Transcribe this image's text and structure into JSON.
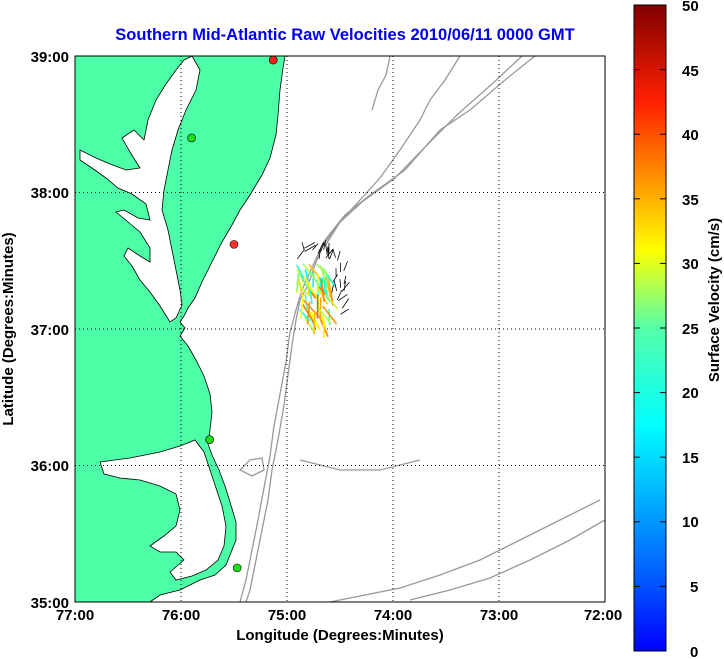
{
  "title": "Southern Mid-Atlantic Raw Velocities 2010/06/11 0000 GMT",
  "title_color": "#0000ee",
  "xlabel": "Longitude (Degrees:Minutes)",
  "ylabel": "Latitude (Degrees:Minutes)",
  "x_ticks": [
    "77:00",
    "76:00",
    "75:00",
    "74:00",
    "73:00",
    "72:00"
  ],
  "y_ticks": [
    "39:00",
    "38:00",
    "37:00",
    "36:00",
    "35:00"
  ],
  "colorbar": {
    "label": "Surface Velocity (cm/s)",
    "ticks": [
      "50",
      "45",
      "40",
      "35",
      "30",
      "25",
      "20",
      "15",
      "10",
      "5",
      "0"
    ],
    "range": [
      0,
      50
    ],
    "colormap": "jet"
  },
  "colors": {
    "land": "#4dffa6",
    "coastline": "#000000",
    "bathymetry": "#999999",
    "grid": "#000000"
  },
  "map": {
    "lon_range": [
      -77,
      -72
    ],
    "lat_range": [
      35,
      39
    ],
    "stations": [
      {
        "lon": -75.13,
        "lat": 38.97,
        "color": "#ff2020"
      },
      {
        "lon": -75.9,
        "lat": 38.4,
        "color": "#20dd20"
      },
      {
        "lon": -75.5,
        "lat": 37.62,
        "color": "#ff3030"
      },
      {
        "lon": -75.73,
        "lat": 36.19,
        "color": "#20dd20"
      },
      {
        "lon": -75.47,
        "lat": 35.25,
        "color": "#20dd20"
      }
    ]
  }
}
